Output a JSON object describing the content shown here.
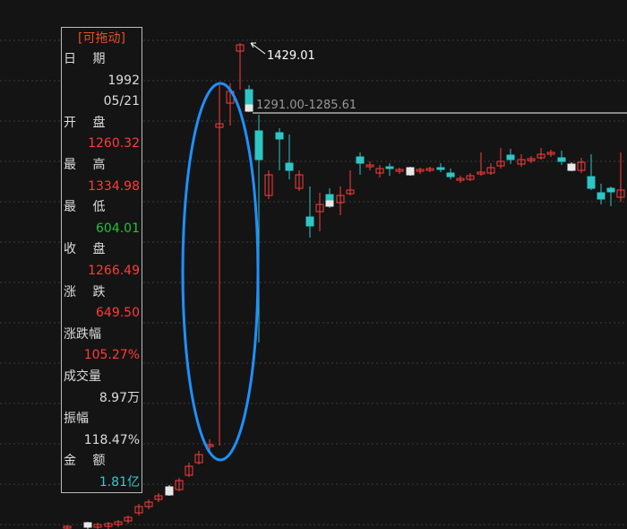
{
  "panel": {
    "title": "[可拖动]",
    "rows": [
      {
        "label": "日　 期",
        "values": [
          "1992",
          "05/21"
        ]
      },
      {
        "label": "开　 盘",
        "values": [
          "1260.32"
        ]
      },
      {
        "label": "最　 高",
        "values": [
          "1334.98"
        ]
      },
      {
        "label": "最　 低",
        "values": [
          "604.01"
        ]
      },
      {
        "label": "收　 盘",
        "values": [
          "1266.49"
        ]
      },
      {
        "label": "涨　 跌",
        "values": [
          "649.50"
        ]
      },
      {
        "label": "涨跌幅",
        "values": [
          "105.27%"
        ]
      },
      {
        "label": "成交量",
        "values": [
          "8.97万"
        ]
      },
      {
        "label": "振幅",
        "values": [
          "118.47%"
        ]
      },
      {
        "label": "金　 额",
        "values": [
          "1.81亿"
        ]
      }
    ]
  },
  "annotations": {
    "high": "1429.01",
    "range": "1291.00-1285.61"
  }
}
